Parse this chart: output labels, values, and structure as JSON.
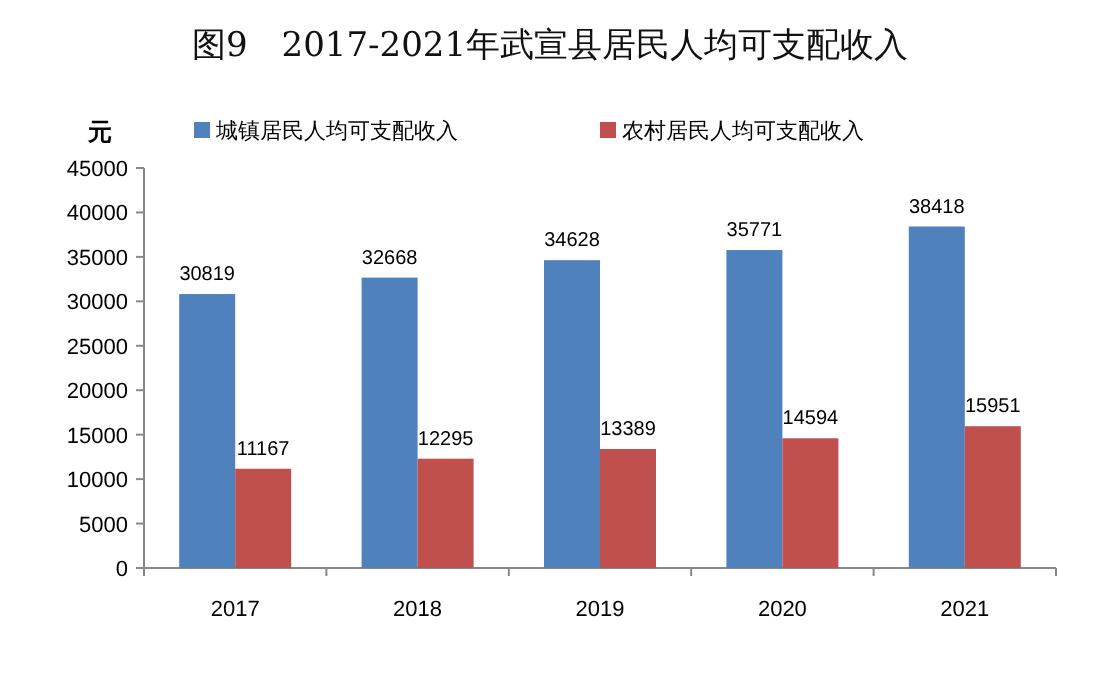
{
  "chart_data": {
    "type": "bar",
    "title": "图9　2017-2021年武宣县居民人均可支配收入",
    "ylabel": "元",
    "categories": [
      "2017",
      "2018",
      "2019",
      "2020",
      "2021"
    ],
    "series": [
      {
        "name": "城镇居民人均可支配收入",
        "color": "#4f81bd",
        "values": [
          30819,
          32668,
          34628,
          35771,
          38418
        ]
      },
      {
        "name": "农村居民人均可支配收入",
        "color": "#c0504d",
        "values": [
          11167,
          12295,
          13389,
          14594,
          15951
        ]
      }
    ],
    "ylim": [
      0,
      45000
    ],
    "yticks": [
      0,
      5000,
      10000,
      15000,
      20000,
      25000,
      30000,
      35000,
      40000,
      45000
    ],
    "data_labels": true,
    "legend": "top",
    "grid": false
  }
}
